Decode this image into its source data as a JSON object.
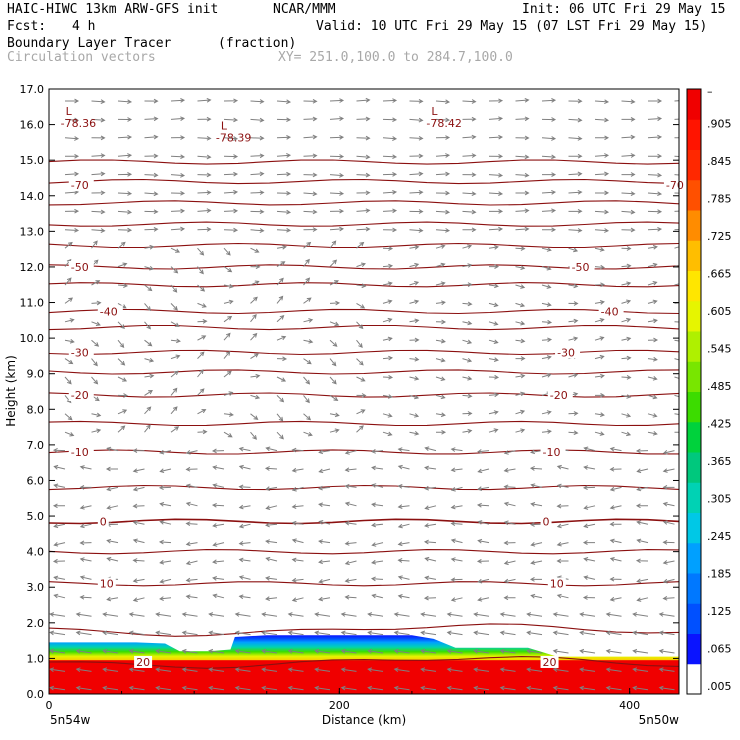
{
  "header": {
    "model": "HAIC-HIWC 13km ARW-GFS init",
    "org": "NCAR/MMM",
    "init": "Init: 06 UTC Fri 29 May 15",
    "fcst_label": "Fcst:",
    "fcst_value": "4 h",
    "valid": "Valid: 10 UTC Fri 29 May 15 (07 LST Fri 29 May 15)",
    "field1": "Boundary Layer Tracer",
    "field1_units": "(fraction)",
    "field2": "Circulation vectors",
    "xy": "XY= 251.0,100.0 to 284.7,100.0"
  },
  "chart_data": {
    "type": "heatmap",
    "ylabel": "Height (km)",
    "xlabel": "Distance (km)",
    "xlim": [
      0,
      434
    ],
    "ylim": [
      0,
      17
    ],
    "yticks": [
      "0.0",
      "1.0",
      "2.0",
      "3.0",
      "4.0",
      "5.0",
      "6.0",
      "7.0",
      "8.0",
      "9.0",
      "10.0",
      "11.0",
      "12.0",
      "13.0",
      "14.0",
      "15.0",
      "16.0",
      "17.0"
    ],
    "xticks": [
      {
        "value": 0,
        "label": "0"
      },
      {
        "value": 200,
        "label": "200"
      },
      {
        "value": 400,
        "label": "400"
      }
    ],
    "x_end_labels": {
      "left": "5n54w",
      "right": "5n50w"
    },
    "tracer_top_km": [
      {
        "x": 0,
        "y": 1.45
      },
      {
        "x": 60,
        "y": 1.45
      },
      {
        "x": 80,
        "y": 1.42
      },
      {
        "x": 90,
        "y": 1.2
      },
      {
        "x": 110,
        "y": 1.2
      },
      {
        "x": 125,
        "y": 1.25
      },
      {
        "x": 128,
        "y": 1.6
      },
      {
        "x": 150,
        "y": 1.65
      },
      {
        "x": 250,
        "y": 1.65
      },
      {
        "x": 265,
        "y": 1.55
      },
      {
        "x": 280,
        "y": 1.3
      },
      {
        "x": 330,
        "y": 1.3
      },
      {
        "x": 350,
        "y": 1.05
      },
      {
        "x": 434,
        "y": 1.05
      }
    ],
    "colorbar": {
      "labels": [
        ".005",
        ".065",
        ".125",
        ".185",
        ".245",
        ".305",
        ".365",
        ".425",
        ".485",
        ".545",
        ".605",
        ".665",
        ".725",
        ".785",
        ".845",
        ".905",
        "–"
      ],
      "colors": [
        "#ffffff",
        "#0a14ff",
        "#0050ff",
        "#0078ff",
        "#00a0ff",
        "#00c8e6",
        "#00d2b4",
        "#00c87d",
        "#00d23c",
        "#3cdc00",
        "#78e600",
        "#aff000",
        "#e6f500",
        "#ffe600",
        "#ffbe00",
        "#ff8c00",
        "#ff5000",
        "#ff2800",
        "#ff1400",
        "#f00000"
      ]
    },
    "isotherm_levels_km": [
      0.9,
      1.8,
      3.1,
      4.0,
      4.85,
      5.8,
      6.8,
      7.6,
      8.4,
      9.05,
      9.6,
      10.3,
      10.75,
      11.5,
      12.0,
      12.6,
      13.2,
      13.8,
      14.4,
      14.95
    ],
    "isotherm_labels": [
      {
        "text": "20",
        "x": 60,
        "y": 0.9
      },
      {
        "text": "20",
        "x": 340,
        "y": 0.9
      },
      {
        "text": "10",
        "x": 35,
        "y": 3.1
      },
      {
        "text": "10",
        "x": 345,
        "y": 3.1
      },
      {
        "text": "0",
        "x": 35,
        "y": 4.85
      },
      {
        "text": "0",
        "x": 340,
        "y": 4.85
      },
      {
        "text": "-10",
        "x": 15,
        "y": 6.8
      },
      {
        "text": "-10",
        "x": 340,
        "y": 6.8
      },
      {
        "text": "-20",
        "x": 15,
        "y": 8.4
      },
      {
        "text": "-20",
        "x": 345,
        "y": 8.4
      },
      {
        "text": "-30",
        "x": 15,
        "y": 9.6
      },
      {
        "text": "-30",
        "x": 350,
        "y": 9.6
      },
      {
        "text": "-40",
        "x": 35,
        "y": 10.75
      },
      {
        "text": "-40",
        "x": 380,
        "y": 10.75
      },
      {
        "text": "-50",
        "x": 15,
        "y": 12.0
      },
      {
        "text": "-50",
        "x": 360,
        "y": 12.0
      },
      {
        "text": "-70",
        "x": 15,
        "y": 14.3
      },
      {
        "text": "-70",
        "x": 425,
        "y": 14.3
      }
    ],
    "lows": [
      {
        "label": "L",
        "value": "-78.36",
        "x": 8,
        "y": 16.1
      },
      {
        "label": "L",
        "value": "-78.39",
        "x": 115,
        "y": 15.7
      },
      {
        "label": "L",
        "value": "-78.42",
        "x": 260,
        "y": 16.1
      }
    ]
  },
  "colors": {
    "isotherm": "#8b1010",
    "vector": "#808080",
    "axis": "#000000"
  }
}
